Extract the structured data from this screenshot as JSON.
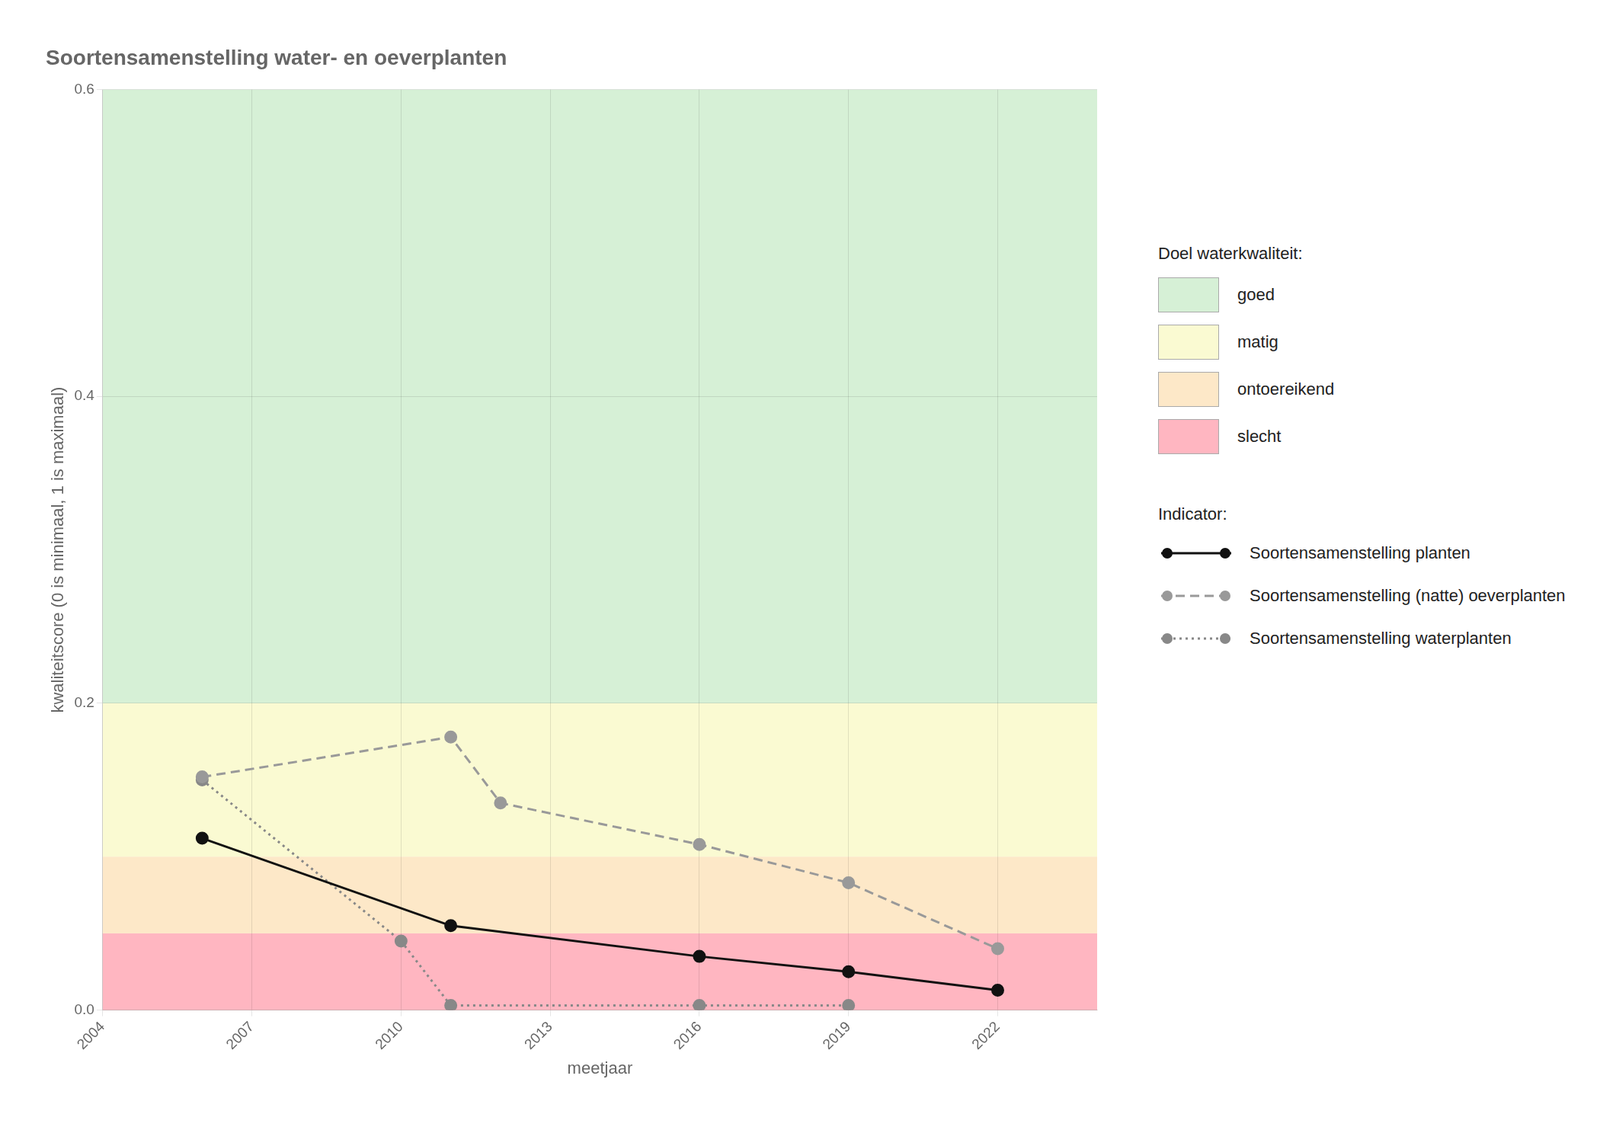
{
  "chart_data": {
    "type": "line",
    "title": "Soortensamenstelling water- en oeverplanten",
    "x_label": "meetjaar",
    "y_label": "kwaliteitscore (0 is minimaal, 1 is maximaal)",
    "xlim": [
      2004,
      2024
    ],
    "ylim": [
      0,
      0.6
    ],
    "xticks": [
      2004,
      2007,
      2010,
      2013,
      2016,
      2019,
      2022
    ],
    "yticks": [
      {
        "value": 0.0,
        "label": "0.0"
      },
      0.2,
      0.4,
      0.6
    ],
    "grid": true,
    "bands_title": "Doel waterkwaliteit:",
    "bands": [
      {
        "name": "goed",
        "color": "#d6f0d6",
        "ymin": 0.2,
        "ymax": 0.6
      },
      {
        "name": "matig",
        "color": "#fafad2",
        "ymin": 0.1,
        "ymax": 0.2
      },
      {
        "name": "ontoereikend",
        "color": "#fde8c8",
        "ymin": 0.05,
        "ymax": 0.1
      },
      {
        "name": "slecht",
        "color": "#ffb6c1",
        "ymin": 0.0,
        "ymax": 0.05
      }
    ],
    "legend_title": "Indicator:",
    "series": [
      {
        "name": "Soortensamenstelling planten",
        "color": "#111111",
        "line_style": "solid",
        "marker": "circle",
        "x": [
          2006,
          2011,
          2016,
          2019,
          2022
        ],
        "values": [
          0.112,
          0.055,
          0.035,
          0.025,
          0.013
        ]
      },
      {
        "name": "Soortensamenstelling (natte) oeverplanten",
        "color": "#999999",
        "line_style": "dashed",
        "marker": "circle",
        "x": [
          2006,
          2011,
          2012,
          2016,
          2019,
          2022
        ],
        "values": [
          0.152,
          0.178,
          0.135,
          0.108,
          0.083,
          0.04
        ]
      },
      {
        "name": "Soortensamenstelling waterplanten",
        "color": "#888888",
        "line_style": "dotted",
        "marker": "circle",
        "x": [
          2006,
          2010,
          2011,
          2016,
          2019
        ],
        "values": [
          0.15,
          0.045,
          0.003,
          0.003,
          0.003
        ]
      }
    ]
  }
}
